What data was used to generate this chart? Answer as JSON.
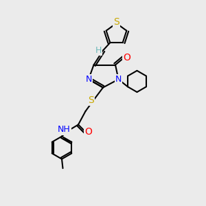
{
  "background_color": "#ebebeb",
  "bond_color": "#000000",
  "bond_width": 1.5,
  "atom_colors": {
    "S": "#c8a800",
    "O": "#ff0000",
    "N": "#0000ff",
    "H": "#6bb8b8",
    "C": "#000000"
  },
  "font_size": 9,
  "fig_size": [
    3.0,
    3.0
  ],
  "dpi": 100
}
